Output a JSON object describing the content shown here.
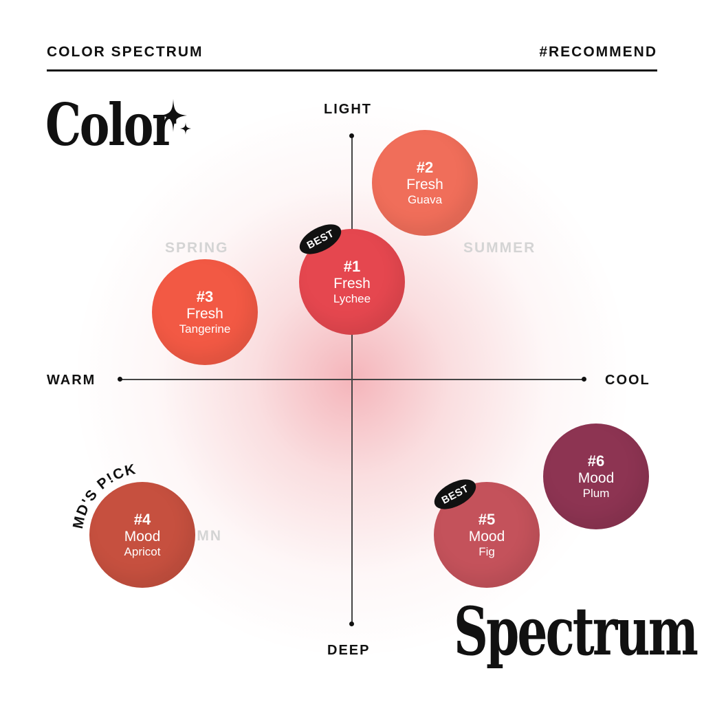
{
  "header": {
    "left": "COLOR SPECTRUM",
    "right": "#RECOMMEND"
  },
  "brand": {
    "top": "Color",
    "bottom": "Spectrum",
    "sparkle_icon": "sparkle-icon"
  },
  "axes": {
    "top": "LIGHT",
    "bottom": "DEEP",
    "left": "WARM",
    "right": "COOL"
  },
  "seasons": {
    "spring": "SPRING",
    "summer": "SUMMER",
    "autumn": "AUTUMN"
  },
  "badges": {
    "best": "BEST",
    "mds_pick": "MD'S P!CK"
  },
  "swatches": [
    {
      "num": "#1",
      "line": "Fresh",
      "name": "Lychee",
      "color": "#e5474f",
      "badge": "BEST"
    },
    {
      "num": "#2",
      "line": "Fresh",
      "name": "Guava",
      "color": "#f06e5a"
    },
    {
      "num": "#3",
      "line": "Fresh",
      "name": "Tangerine",
      "color": "#f25944"
    },
    {
      "num": "#4",
      "line": "Mood",
      "name": "Apricot",
      "color": "#c6503f",
      "badge": "MD'S P!CK"
    },
    {
      "num": "#5",
      "line": "Mood",
      "name": "Fig",
      "color": "#c4525b",
      "badge": "BEST"
    },
    {
      "num": "#6",
      "line": "Mood",
      "name": "Plum",
      "color": "#8d3452"
    }
  ]
}
